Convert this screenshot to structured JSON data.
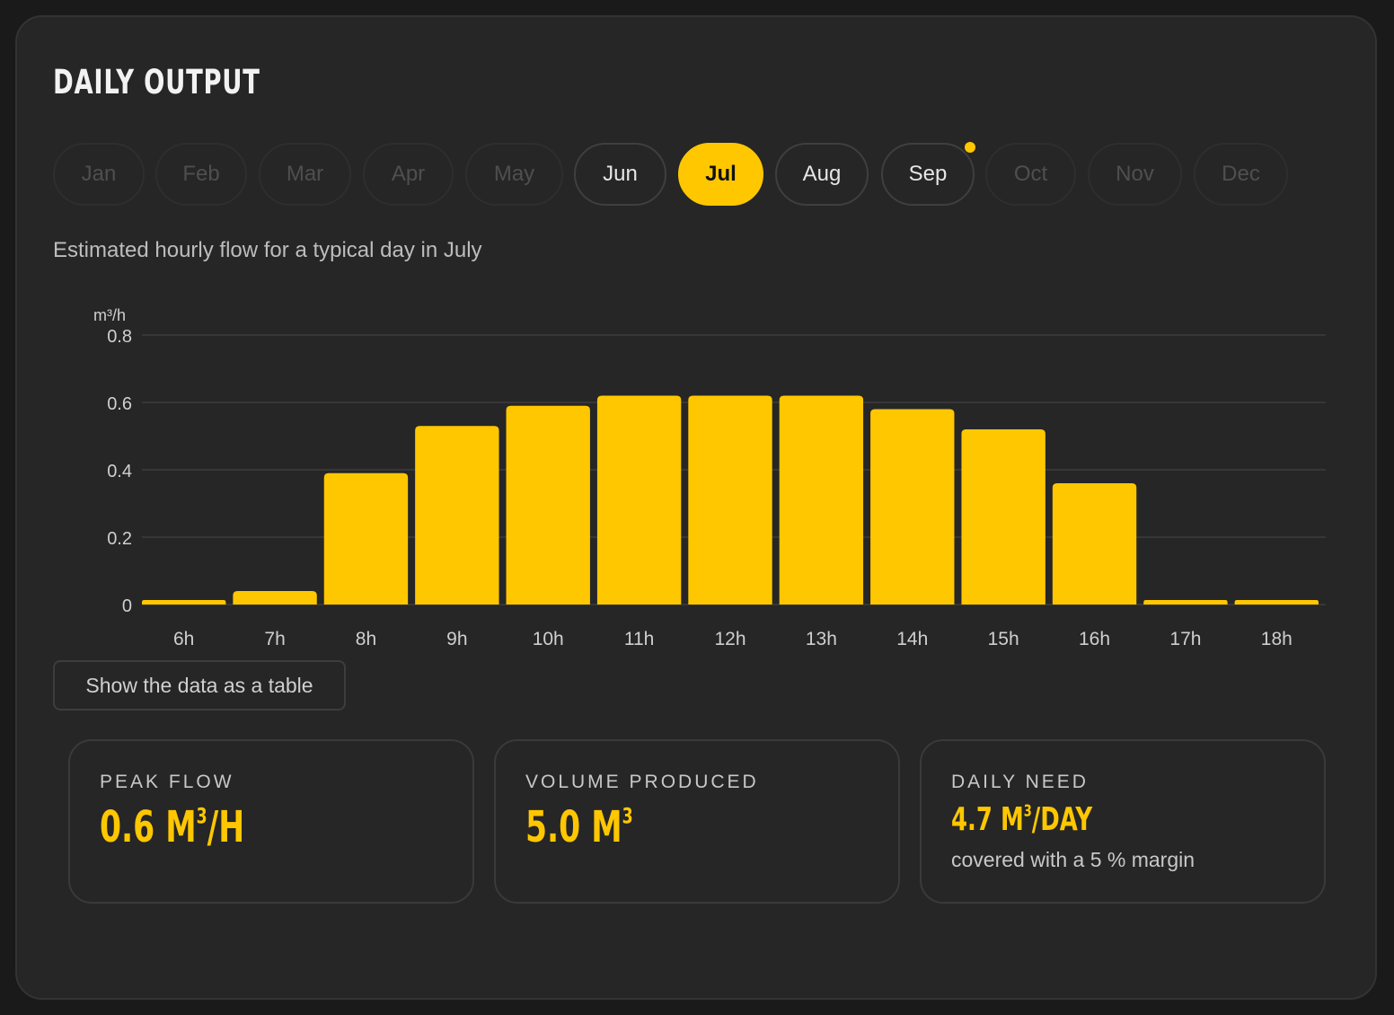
{
  "header": {
    "title": "DAILY OUTPUT"
  },
  "months": {
    "items": [
      {
        "label": "Jan",
        "state": "disabled"
      },
      {
        "label": "Feb",
        "state": "disabled"
      },
      {
        "label": "Mar",
        "state": "disabled"
      },
      {
        "label": "Apr",
        "state": "disabled"
      },
      {
        "label": "May",
        "state": "disabled"
      },
      {
        "label": "Jun",
        "state": "available"
      },
      {
        "label": "Jul",
        "state": "selected"
      },
      {
        "label": "Aug",
        "state": "available"
      },
      {
        "label": "Sep",
        "state": "available",
        "dot": true
      },
      {
        "label": "Oct",
        "state": "disabled"
      },
      {
        "label": "Nov",
        "state": "disabled"
      },
      {
        "label": "Dec",
        "state": "disabled"
      }
    ]
  },
  "subtitle": "Estimated hourly flow for a typical day in July",
  "chart_data": {
    "type": "bar",
    "ylabel": "m³/h",
    "categories": [
      "6h",
      "7h",
      "8h",
      "9h",
      "10h",
      "11h",
      "12h",
      "13h",
      "14h",
      "15h",
      "16h",
      "17h",
      "18h"
    ],
    "values": [
      0.01,
      0.04,
      0.39,
      0.53,
      0.59,
      0.62,
      0.62,
      0.62,
      0.58,
      0.52,
      0.36,
      0.01,
      0.01
    ],
    "ylim": [
      0,
      0.8
    ],
    "yticks": [
      "0",
      "0.2",
      "0.4",
      "0.6",
      "0.8"
    ],
    "grid": true,
    "bar_color": "#ffc700"
  },
  "table_button": {
    "label": "Show the data as a table"
  },
  "stats": {
    "peak": {
      "label": "PEAK FLOW",
      "value": "0.6 M",
      "exp": "3",
      "unit": "/H"
    },
    "volume": {
      "label": "VOLUME PRODUCED",
      "value": "5.0 M",
      "exp": "3"
    },
    "need": {
      "label": "DAILY NEED",
      "value": "4.7 M",
      "exp": "3",
      "unit": "/DAY",
      "note": "covered with a 5 % margin"
    }
  },
  "colors": {
    "accent": "#ffc700",
    "card": "#262626",
    "background": "#1a1a1a"
  }
}
